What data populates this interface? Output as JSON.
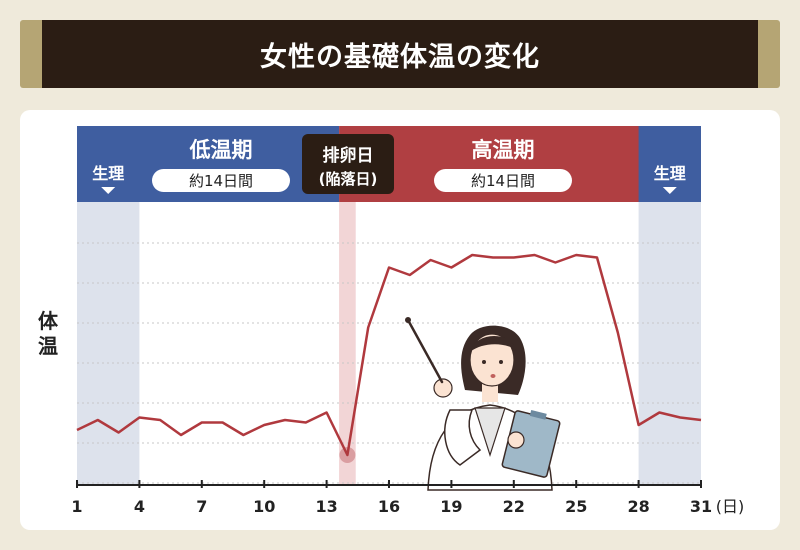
{
  "title": "女性の基礎体温の変化",
  "phases": {
    "menstruation": "生理",
    "low": {
      "label": "低温期",
      "duration": "約14日間"
    },
    "ovulation": {
      "label": "排卵日",
      "sub": "(陥落日)"
    },
    "high": {
      "label": "高温期",
      "duration": "約14日間"
    }
  },
  "colors": {
    "title_bg": "#2b1d14",
    "title_frame": "#b5a574",
    "low_band": "#3f5ea0",
    "high_band": "#b03f42",
    "menstruation_shade": "#dde2ec",
    "ovulation_shade": "#f2d5d6",
    "line": "#b0393e",
    "ovulation_box": "#2b1d14"
  },
  "chart_data": {
    "type": "line",
    "ylabel": "体温",
    "xlabel": "(日)",
    "x_ticks": [
      1,
      4,
      7,
      10,
      13,
      16,
      19,
      22,
      25,
      28,
      31
    ],
    "xlim": [
      1,
      31
    ],
    "ylim": [
      0,
      1
    ],
    "y_ticks_shown": false,
    "grid": "horizontal-dotted",
    "series": [
      {
        "x": [
          1,
          2,
          3,
          4,
          5,
          6,
          7,
          8,
          9,
          10,
          11,
          12,
          13,
          14,
          15,
          16,
          17,
          18,
          19,
          20,
          21,
          22,
          23,
          24,
          25,
          26,
          27,
          28,
          29,
          30,
          31
        ],
        "values": [
          0.1,
          0.14,
          0.09,
          0.15,
          0.14,
          0.08,
          0.13,
          0.13,
          0.08,
          0.12,
          0.14,
          0.13,
          0.17,
          0.0,
          0.51,
          0.75,
          0.72,
          0.78,
          0.75,
          0.8,
          0.79,
          0.79,
          0.8,
          0.77,
          0.8,
          0.79,
          0.49,
          0.12,
          0.17,
          0.15,
          0.14
        ]
      }
    ],
    "phase_ranges": {
      "menstruation_start": [
        1,
        4
      ],
      "ovulation": [
        13.6,
        14.4
      ],
      "menstruation_end": [
        28,
        31
      ]
    },
    "ovulation_marker_day": 14
  }
}
